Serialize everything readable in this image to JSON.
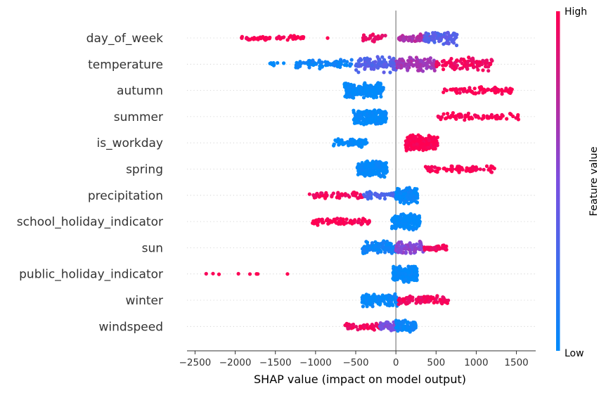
{
  "chart_data": {
    "type": "scatter",
    "subtype": "shap-beeswarm",
    "title": "",
    "xlabel": "SHAP value (impact on model output)",
    "xlim": [
      -2600,
      1740
    ],
    "xticks": [
      -2500,
      -2000,
      -1500,
      -1000,
      -500,
      0,
      500,
      1000,
      1500
    ],
    "grid": false,
    "colorbar": {
      "label": "Feature value",
      "high_label": "High",
      "low_label": "Low",
      "low_color": "#008bfb",
      "mid_color": "#7b4fe0",
      "high_color": "#ff0052"
    },
    "features": [
      {
        "name": "day_of_week",
        "segments": [
          {
            "min": -1930,
            "max": -1150,
            "v": 1.0,
            "n": 60,
            "spread": 0.35
          },
          {
            "min": -850,
            "max": -850,
            "v": 1.0,
            "n": 1,
            "spread": 0.1
          },
          {
            "min": -420,
            "max": -130,
            "v": 0.9,
            "n": 35,
            "spread": 0.55
          },
          {
            "min": 30,
            "max": 430,
            "v": 0.7,
            "n": 60,
            "spread": 0.5
          },
          {
            "min": 350,
            "max": 760,
            "v": 0.35,
            "n": 80,
            "spread": 0.9
          }
        ]
      },
      {
        "name": "temperature",
        "segments": [
          {
            "min": -1600,
            "max": -1350,
            "v": 0.0,
            "n": 8,
            "spread": 0.2
          },
          {
            "min": -1250,
            "max": -550,
            "v": 0.05,
            "n": 90,
            "spread": 0.6
          },
          {
            "min": -500,
            "max": 0,
            "v": 0.35,
            "n": 110,
            "spread": 1.0
          },
          {
            "min": 0,
            "max": 500,
            "v": 0.65,
            "n": 110,
            "spread": 1.0
          },
          {
            "min": 500,
            "max": 1200,
            "v": 0.95,
            "n": 110,
            "spread": 0.9
          }
        ]
      },
      {
        "name": "autumn",
        "segments": [
          {
            "min": -640,
            "max": -150,
            "v": 0.0,
            "n": 230,
            "spread": 1.0
          },
          {
            "min": 580,
            "max": 1460,
            "v": 1.0,
            "n": 75,
            "spread": 0.45
          }
        ]
      },
      {
        "name": "summer",
        "segments": [
          {
            "min": -530,
            "max": -120,
            "v": 0.0,
            "n": 210,
            "spread": 1.0
          },
          {
            "min": 510,
            "max": 1530,
            "v": 1.0,
            "n": 75,
            "spread": 0.45
          }
        ]
      },
      {
        "name": "is_workday",
        "segments": [
          {
            "min": -780,
            "max": -360,
            "v": 0.0,
            "n": 75,
            "spread": 0.6
          },
          {
            "min": 120,
            "max": 520,
            "v": 1.0,
            "n": 200,
            "spread": 1.0
          }
        ]
      },
      {
        "name": "spring",
        "segments": [
          {
            "min": -480,
            "max": -110,
            "v": 0.0,
            "n": 210,
            "spread": 1.0
          },
          {
            "min": 370,
            "max": 1280,
            "v": 1.0,
            "n": 75,
            "spread": 0.45
          }
        ]
      },
      {
        "name": "precipitation",
        "segments": [
          {
            "min": -1080,
            "max": -400,
            "v": 0.95,
            "n": 60,
            "spread": 0.45
          },
          {
            "min": -400,
            "max": 0,
            "v": 0.3,
            "n": 55,
            "spread": 0.45
          },
          {
            "min": 0,
            "max": 270,
            "v": 0.02,
            "n": 150,
            "spread": 1.0
          }
        ]
      },
      {
        "name": "school_holiday_indicator",
        "segments": [
          {
            "min": -1040,
            "max": -330,
            "v": 1.0,
            "n": 75,
            "spread": 0.45
          },
          {
            "min": -50,
            "max": 300,
            "v": 0.0,
            "n": 160,
            "spread": 1.0
          }
        ]
      },
      {
        "name": "sun",
        "segments": [
          {
            "min": -420,
            "max": 0,
            "v": 0.05,
            "n": 110,
            "spread": 0.8
          },
          {
            "min": 0,
            "max": 350,
            "v": 0.55,
            "n": 100,
            "spread": 0.8
          },
          {
            "min": 350,
            "max": 640,
            "v": 0.95,
            "n": 45,
            "spread": 0.45
          }
        ]
      },
      {
        "name": "public_holiday_indicator",
        "segments": [
          {
            "min": -2390,
            "max": -1700,
            "v": 1.0,
            "n": 7,
            "spread": 0.15
          },
          {
            "min": -1350,
            "max": -1350,
            "v": 1.0,
            "n": 1,
            "spread": 0.1
          },
          {
            "min": -40,
            "max": 270,
            "v": 0.0,
            "n": 210,
            "spread": 1.0
          }
        ]
      },
      {
        "name": "winter",
        "segments": [
          {
            "min": -420,
            "max": 30,
            "v": 0.03,
            "n": 130,
            "spread": 0.8
          },
          {
            "min": 30,
            "max": 660,
            "v": 0.95,
            "n": 95,
            "spread": 0.55
          }
        ]
      },
      {
        "name": "windspeed",
        "segments": [
          {
            "min": -640,
            "max": -200,
            "v": 0.95,
            "n": 55,
            "spread": 0.45
          },
          {
            "min": -200,
            "max": 0,
            "v": 0.5,
            "n": 50,
            "spread": 0.6
          },
          {
            "min": 0,
            "max": 250,
            "v": 0.03,
            "n": 80,
            "spread": 0.8
          }
        ]
      }
    ]
  }
}
